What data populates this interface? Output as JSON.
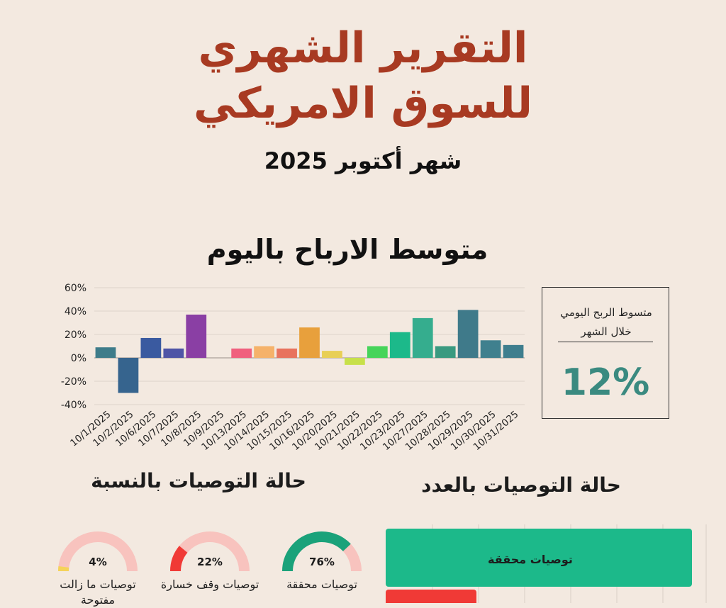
{
  "header": {
    "title_line1": "التقرير الشهري",
    "title_line2": "للسوق الامريكي",
    "subtitle": "شهر أكتوبر 2025"
  },
  "daily_chart_title": "متوسط الارباح باليوم",
  "summary_box": {
    "label": "متسوط الربح اليومي خلال الشهر",
    "value": "12%",
    "value_color": "#3a8a80"
  },
  "status_pct_title": "حالة التوصيات بالنسبة",
  "status_count_title": "حالة التوصيات بالعدد",
  "gauges": [
    {
      "pct_text": "76%",
      "value": 76,
      "label": "توصيات محققة",
      "color": "#1aa27a",
      "track": "#f8c3be"
    },
    {
      "pct_text": "22%",
      "value": 22,
      "label": "توصيات وقف خسارة",
      "color": "#f03a36",
      "track": "#f8c3be"
    },
    {
      "pct_text": "4%",
      "value": 4,
      "label": "توصيات ما زالت مفتوحة",
      "color": "#f5d35a",
      "track": "#f8c3be"
    }
  ],
  "count_bars": [
    {
      "label": "توصيات محققة",
      "color": "#1cb98a"
    },
    {
      "label": "",
      "color": "#f03a36"
    }
  ],
  "chart_data": {
    "type": "bar",
    "title": "متوسط الارباح باليوم",
    "categories": [
      "10/1/2025",
      "10/2/2025",
      "10/6/2025",
      "10/7/2025",
      "10/8/2025",
      "10/9/2025",
      "10/13/2025",
      "10/14/2025",
      "10/15/2025",
      "10/16/2025",
      "10/20/2025",
      "10/21/2025",
      "10/22/2025",
      "10/23/2025",
      "10/27/2025",
      "10/28/2025",
      "10/29/2025",
      "10/30/2025",
      "10/31/2025"
    ],
    "values": [
      9,
      -30,
      17,
      8,
      37,
      0,
      8,
      10,
      8,
      26,
      6,
      -6,
      10,
      22,
      34,
      10,
      41,
      15,
      11
    ],
    "colors": [
      "#3e7c8a",
      "#36648e",
      "#3a5aa0",
      "#4f55a6",
      "#8a3fa4",
      "#d05580",
      "#f0607e",
      "#f5b26a",
      "#e8735e",
      "#e8a03c",
      "#e8cf55",
      "#c7e04a",
      "#46d45a",
      "#1cb98a",
      "#35ad8e",
      "#3a9a80",
      "#3f7a8a",
      "#3f808e",
      "#3e7e8e"
    ],
    "ylim": [
      -40,
      60
    ],
    "yticks": [
      "-40%",
      "-20%",
      "0%",
      "20%",
      "40%",
      "60%"
    ],
    "grid": true
  }
}
